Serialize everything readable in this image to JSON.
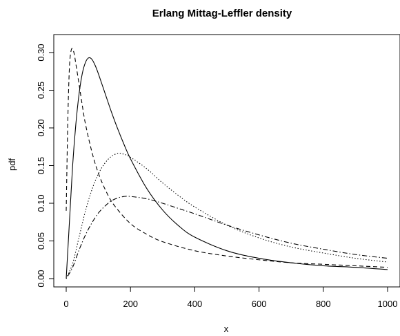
{
  "chart_data": {
    "type": "line",
    "title": "Erlang Mittag-Leffler density",
    "xlabel": "x",
    "ylabel": "pdf",
    "xlim": [
      0,
      1000
    ],
    "ylim": [
      0,
      0.3
    ],
    "x_ticks": [
      0,
      200,
      400,
      600,
      800,
      1000
    ],
    "x_tick_labels": [
      "0",
      "200",
      "400",
      "600",
      "800",
      "1000"
    ],
    "y_ticks": [
      0,
      0.05,
      0.1,
      0.15,
      0.2,
      0.25,
      0.3
    ],
    "y_tick_labels": [
      "0.00",
      "0.05",
      "0.10",
      "0.15",
      "0.20",
      "0.25",
      "0.30"
    ],
    "grid": false,
    "legend": "none",
    "series": [
      {
        "line_style": "solid",
        "x": [
          0,
          10,
          20,
          30,
          40,
          50,
          60,
          70,
          80,
          90,
          100,
          120,
          140,
          160,
          180,
          200,
          250,
          300,
          350,
          400,
          500,
          600,
          700,
          800,
          900,
          1000
        ],
        "y": [
          0.0,
          0.075,
          0.15,
          0.205,
          0.245,
          0.272,
          0.287,
          0.293,
          0.291,
          0.283,
          0.272,
          0.247,
          0.222,
          0.199,
          0.178,
          0.159,
          0.12,
          0.091,
          0.07,
          0.055,
          0.037,
          0.027,
          0.021,
          0.017,
          0.015,
          0.012
        ]
      },
      {
        "line_style": "dashed",
        "x": [
          0,
          5,
          10,
          15,
          20,
          25,
          30,
          40,
          50,
          60,
          80,
          100,
          125,
          150,
          200,
          250,
          300,
          400,
          500,
          600,
          700,
          800,
          900,
          1000
        ],
        "y": [
          0.09,
          0.21,
          0.28,
          0.302,
          0.305,
          0.298,
          0.285,
          0.258,
          0.23,
          0.205,
          0.168,
          0.14,
          0.115,
          0.097,
          0.073,
          0.059,
          0.049,
          0.037,
          0.03,
          0.025,
          0.021,
          0.019,
          0.017,
          0.015
        ]
      },
      {
        "line_style": "dotted",
        "x": [
          0,
          20,
          40,
          60,
          80,
          100,
          120,
          140,
          160,
          180,
          200,
          250,
          300,
          350,
          400,
          500,
          600,
          700,
          800,
          900,
          1000
        ],
        "y": [
          0.0,
          0.02,
          0.055,
          0.09,
          0.118,
          0.139,
          0.153,
          0.162,
          0.166,
          0.165,
          0.161,
          0.146,
          0.127,
          0.11,
          0.095,
          0.071,
          0.054,
          0.042,
          0.034,
          0.027,
          0.022
        ]
      },
      {
        "line_style": "dotdash",
        "x": [
          0,
          20,
          40,
          60,
          80,
          100,
          120,
          140,
          160,
          180,
          200,
          250,
          300,
          350,
          400,
          500,
          600,
          700,
          800,
          900,
          1000
        ],
        "y": [
          0.0,
          0.015,
          0.038,
          0.058,
          0.074,
          0.087,
          0.096,
          0.103,
          0.107,
          0.109,
          0.109,
          0.106,
          0.1,
          0.093,
          0.086,
          0.071,
          0.058,
          0.047,
          0.039,
          0.032,
          0.027
        ]
      }
    ]
  }
}
